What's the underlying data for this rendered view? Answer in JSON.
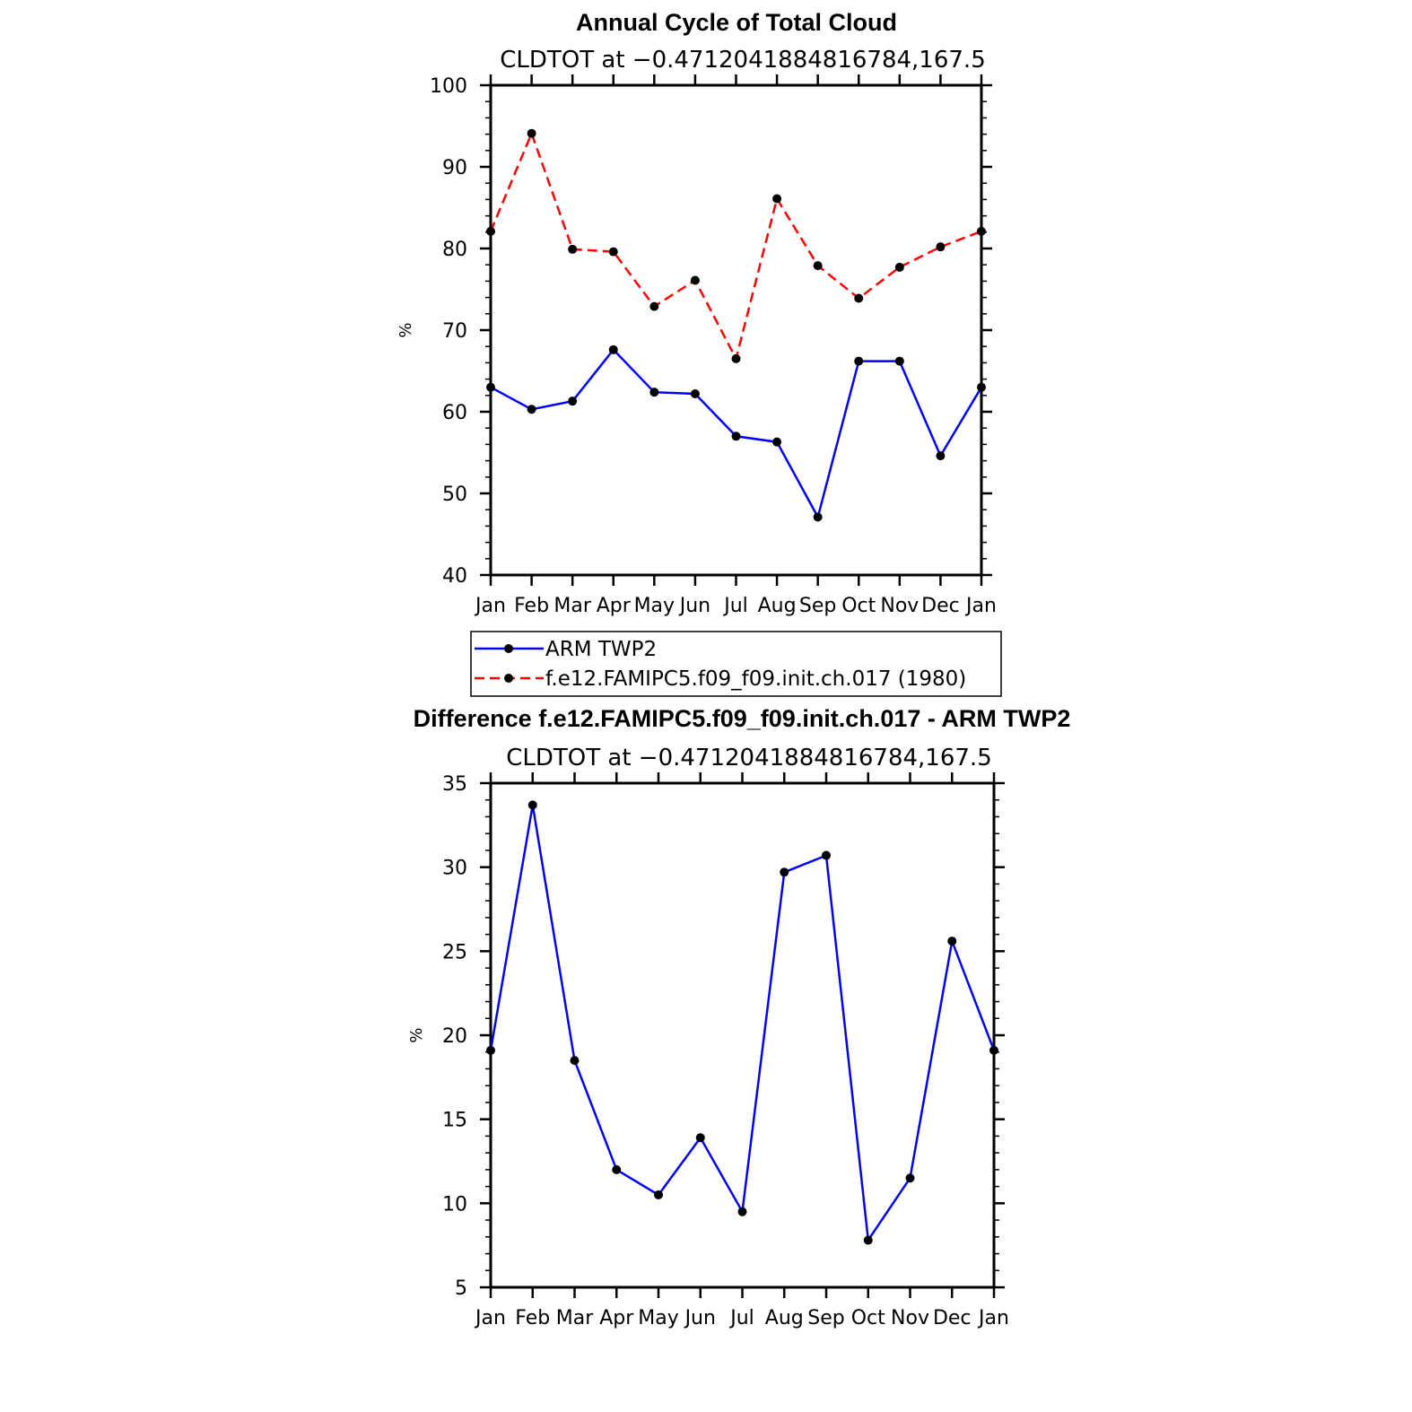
{
  "chart_data": [
    {
      "type": "line",
      "title": "Annual Cycle of Total Cloud",
      "subtitle": "CLDTOT at −0.4712041884816784,167.5",
      "ylabel": "%",
      "xlabel": "",
      "categories": [
        "Jan",
        "Feb",
        "Mar",
        "Apr",
        "May",
        "Jun",
        "Jul",
        "Aug",
        "Sep",
        "Oct",
        "Nov",
        "Dec",
        "Jan"
      ],
      "ylim": [
        40,
        100
      ],
      "yticks": [
        "40",
        "50",
        "60",
        "70",
        "80",
        "90",
        "100"
      ],
      "legend_position": "below",
      "series": [
        {
          "name": "ARM TWP2",
          "color": "#0000ff",
          "dash": "solid",
          "marker": "filled-circle",
          "values": [
            63.0,
            60.3,
            61.3,
            67.6,
            62.4,
            62.2,
            57.0,
            56.3,
            47.1,
            66.2,
            66.2,
            54.6,
            63.0
          ]
        },
        {
          "name": "f.e12.FAMIPC5.f09_f09.init.ch.017 (1980)",
          "color": "#ff0000",
          "dash": "dashed",
          "marker": "filled-circle",
          "values": [
            82.1,
            94.1,
            79.9,
            79.6,
            72.9,
            76.1,
            66.5,
            86.1,
            77.9,
            73.9,
            77.7,
            80.2,
            82.1
          ]
        }
      ]
    },
    {
      "type": "line",
      "title": "Difference f.e12.FAMIPC5.f09_f09.init.ch.017 - ARM TWP2",
      "subtitle": "CLDTOT at −0.4712041884816784,167.5",
      "ylabel": "%",
      "xlabel": "",
      "categories": [
        "Jan",
        "Feb",
        "Mar",
        "Apr",
        "May",
        "Jun",
        "Jul",
        "Aug",
        "Sep",
        "Oct",
        "Nov",
        "Dec",
        "Jan"
      ],
      "ylim": [
        5,
        35
      ],
      "yticks": [
        "5",
        "10",
        "15",
        "20",
        "25",
        "30",
        "35"
      ],
      "series": [
        {
          "color": "#0000ff",
          "dash": "solid",
          "marker": "filled-circle",
          "values": [
            19.1,
            33.7,
            18.5,
            12.0,
            10.5,
            13.9,
            9.5,
            29.7,
            30.7,
            7.8,
            11.5,
            25.6,
            19.1
          ]
        }
      ]
    }
  ]
}
